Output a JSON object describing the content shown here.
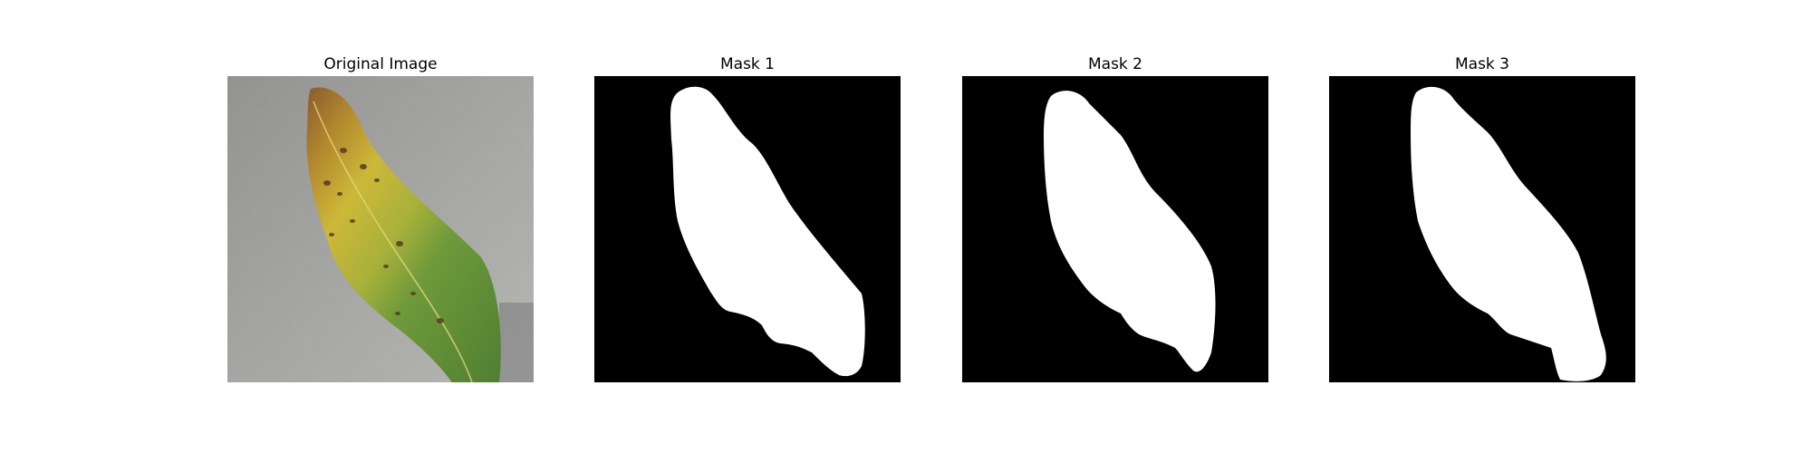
{
  "panels": [
    {
      "title": "Original Image"
    },
    {
      "title": "Mask 1"
    },
    {
      "title": "Mask 2"
    },
    {
      "title": "Mask 3"
    }
  ],
  "colors": {
    "background_gray": "#9c9c9a",
    "leaf_yellow": "#c9b534",
    "leaf_green": "#5f8f38",
    "leaf_brown": "#8a5a2c",
    "mask_foreground": "#ffffff",
    "mask_background": "#000000"
  }
}
